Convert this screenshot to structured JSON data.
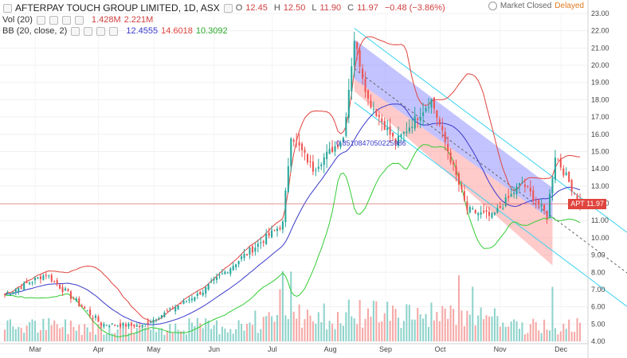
{
  "header": {
    "symbol_title": "AFTERPAY TOUCH GROUP LIMITED, 1D, ASX",
    "ohlc": [
      {
        "label": "O",
        "value": "12.45"
      },
      {
        "label": "H",
        "value": "12.50"
      },
      {
        "label": "L",
        "value": "11.90"
      },
      {
        "label": "C",
        "value": "11.97"
      }
    ],
    "change": "−0.48 (−3.86%)",
    "vol_name": "Vol (20)",
    "vol_values": [
      "1.428M",
      "2.221M"
    ],
    "bb_name": "BB (20, close, 2)",
    "bb_values": [
      "12.4555",
      "14.6018",
      "10.3092"
    ],
    "market_status": "Market Closed",
    "delayed": "Delayed"
  },
  "colors": {
    "up": "#26a69a",
    "down": "#ef5350",
    "bb_mid": "#3a3acb",
    "bb_upper": "#e0443e",
    "bb_lower": "#33cc33",
    "channel_upper": "#7b7bff",
    "channel_lower": "#ff8a8a",
    "outer_line": "#38d3f0"
  },
  "chart_data": {
    "type": "candlestick",
    "ylim": [
      4.0,
      23.4
    ],
    "y_ticks": [
      "23.00",
      "22.00",
      "21.00",
      "20.00",
      "19.00",
      "18.00",
      "17.00",
      "16.00",
      "15.00",
      "14.00",
      "13.00",
      "12.00",
      "11.00",
      "10.00",
      "9.00",
      "8.00",
      "7.00",
      "6.00",
      "5.00",
      "4.00"
    ],
    "x_labels": [
      "Mar",
      "Apr",
      "May",
      "Jun",
      "Jul",
      "Aug",
      "Sep",
      "Oct",
      "Nov",
      "Dec"
    ],
    "last_price_label": "APT",
    "last_price": "11.97",
    "annotation": "0.8510847050225986",
    "key_points": [
      {
        "date": "Feb 20",
        "close": 6.7
      },
      {
        "date": "Mar 10",
        "close": 7.9
      },
      {
        "date": "Apr 10",
        "close": 5.0
      },
      {
        "date": "May 1",
        "close": 4.9
      },
      {
        "date": "Jun 1",
        "close": 6.9
      },
      {
        "date": "Jun 20",
        "close": 8.7
      },
      {
        "date": "Jul 13",
        "close": 10.8
      },
      {
        "date": "Jul 18",
        "close": 16.0
      },
      {
        "date": "Jul 30",
        "close": 14.0
      },
      {
        "date": "Aug 14",
        "close": 15.8
      },
      {
        "date": "Aug 20",
        "close": 21.5
      },
      {
        "date": "Aug 27",
        "close": 18.0
      },
      {
        "date": "Sep 10",
        "close": 15.5
      },
      {
        "date": "Sep 28",
        "close": 18.0
      },
      {
        "date": "Oct 16",
        "close": 11.6
      },
      {
        "date": "Oct 29",
        "close": 11.2
      },
      {
        "date": "Nov 13",
        "close": 13.2
      },
      {
        "date": "Nov 26",
        "close": 11.3
      },
      {
        "date": "Nov 29",
        "close": 14.8
      },
      {
        "date": "Dec 7",
        "close": 11.97
      }
    ]
  }
}
